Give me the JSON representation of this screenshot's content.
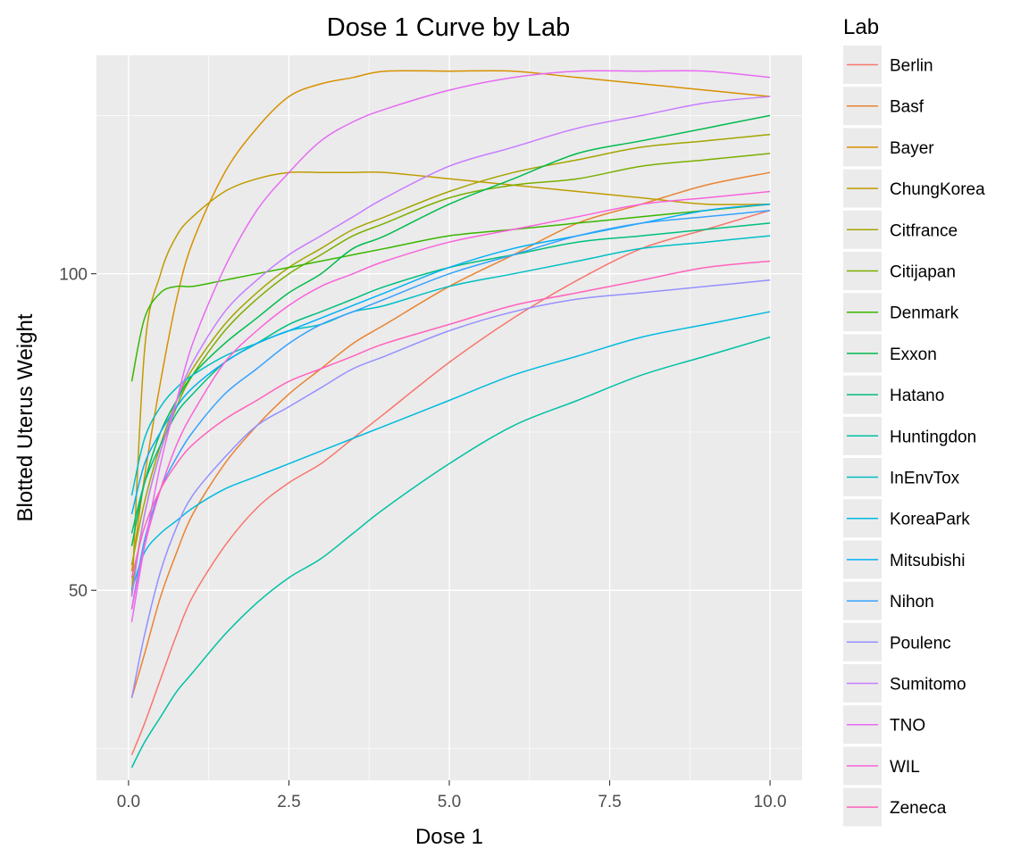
{
  "chart_data": {
    "type": "line",
    "title": "Dose 1 Curve by Lab",
    "xlabel": "Dose 1",
    "ylabel": "Blotted Uterus Weight",
    "xlim": [
      -0.5,
      10.5
    ],
    "ylim": [
      20,
      134.5
    ],
    "x_ticks": [
      0.0,
      2.5,
      5.0,
      7.5,
      10.0
    ],
    "x_tick_labels": [
      "0.0",
      "2.5",
      "5.0",
      "7.5",
      "10.0"
    ],
    "y_ticks": [
      50,
      100
    ],
    "y_tick_labels": [
      "50",
      "100"
    ],
    "grid": true,
    "panel_background": "#ebebeb",
    "legend": {
      "title": "Lab",
      "position": "right"
    },
    "x": [
      0.05,
      0.25,
      0.5,
      0.75,
      1.0,
      1.5,
      2.0,
      2.5,
      3.0,
      3.5,
      4.0,
      5.0,
      6.0,
      7.0,
      8.0,
      9.0,
      10.0
    ],
    "series": [
      {
        "name": "Berlin",
        "color": "#F8766D",
        "values": [
          24,
          29,
          36,
          43,
          49,
          57,
          63,
          67,
          70,
          74,
          78,
          86,
          93,
          99,
          104,
          107,
          110
        ]
      },
      {
        "name": "Basf",
        "color": "#EA8331",
        "values": [
          33,
          40,
          49,
          56,
          62,
          70,
          76,
          81,
          85,
          89,
          92,
          98,
          103,
          108,
          111,
          114,
          116
        ]
      },
      {
        "name": "Bayer",
        "color": "#D89000",
        "values": [
          53,
          68,
          83,
          96,
          105,
          116,
          123,
          128,
          130,
          131,
          132,
          132,
          132,
          131,
          130,
          129,
          128
        ]
      },
      {
        "name": "ChungKorea",
        "color": "#C09B00",
        "values": [
          49,
          88,
          100,
          106,
          109,
          113,
          115,
          116,
          116,
          116,
          116,
          115,
          114,
          113,
          112,
          111,
          111
        ]
      },
      {
        "name": "Citfrance",
        "color": "#A3A500",
        "values": [
          54,
          64,
          73,
          80,
          85,
          92,
          97,
          101,
          104,
          107,
          109,
          113,
          116,
          118,
          120,
          121,
          122
        ]
      },
      {
        "name": "Citijapan",
        "color": "#7CAE00",
        "values": [
          50,
          62,
          72,
          79,
          84,
          91,
          96,
          100,
          103,
          106,
          108,
          112,
          114,
          115,
          117,
          118,
          119
        ]
      },
      {
        "name": "Denmark",
        "color": "#39B600",
        "values": [
          83,
          93,
          97,
          98,
          98,
          99,
          100,
          101,
          102,
          103,
          104,
          106,
          107,
          108,
          109,
          110,
          111
        ]
      },
      {
        "name": "Exxon",
        "color": "#00BB4E",
        "values": [
          57,
          67,
          75,
          80,
          84,
          89,
          93,
          97,
          100,
          104,
          106,
          111,
          115,
          119,
          121,
          123,
          125
        ]
      },
      {
        "name": "Hatano",
        "color": "#00BF7D",
        "values": [
          59,
          67,
          73,
          78,
          81,
          86,
          89,
          92,
          94,
          96,
          98,
          101,
          103,
          105,
          106,
          107,
          108
        ]
      },
      {
        "name": "Huntingdon",
        "color": "#00C1A3",
        "values": [
          22,
          26,
          30,
          34,
          37,
          43,
          48,
          52,
          55,
          59,
          63,
          70,
          76,
          80,
          84,
          87,
          90
        ]
      },
      {
        "name": "InEnvTox",
        "color": "#00BFC4",
        "values": [
          65,
          74,
          79,
          82,
          84,
          87,
          89,
          91,
          92,
          94,
          95,
          98,
          100,
          102,
          104,
          105,
          106
        ]
      },
      {
        "name": "KoreaPark",
        "color": "#00BAE0",
        "values": [
          50,
          56,
          59,
          61,
          63,
          66,
          68,
          70,
          72,
          74,
          76,
          80,
          84,
          87,
          90,
          92,
          94
        ]
      },
      {
        "name": "Mitsubishi",
        "color": "#00B0F6",
        "values": [
          62,
          70,
          75,
          79,
          82,
          86,
          89,
          91,
          93,
          95,
          97,
          101,
          104,
          106,
          108,
          110,
          111
        ]
      },
      {
        "name": "Nihon",
        "color": "#35A2FF",
        "values": [
          47,
          58,
          66,
          71,
          75,
          81,
          85,
          89,
          92,
          94,
          96,
          100,
          103,
          106,
          108,
          109,
          110
        ]
      },
      {
        "name": "Poulenc",
        "color": "#9590FF",
        "values": [
          33,
          43,
          53,
          60,
          65,
          71,
          76,
          79,
          82,
          85,
          87,
          91,
          94,
          96,
          97,
          98,
          99
        ]
      },
      {
        "name": "Sumitomo",
        "color": "#C77CFF",
        "values": [
          49,
          62,
          72,
          80,
          86,
          94,
          99,
          103,
          106,
          109,
          112,
          117,
          120,
          123,
          125,
          127,
          128
        ]
      },
      {
        "name": "TNO",
        "color": "#E76BF3",
        "values": [
          45,
          57,
          70,
          80,
          89,
          101,
          110,
          116,
          121,
          124,
          126,
          129,
          131,
          132,
          132,
          132,
          131
        ]
      },
      {
        "name": "WIL",
        "color": "#FA62DB",
        "values": [
          47,
          57,
          66,
          73,
          78,
          86,
          91,
          95,
          98,
          100,
          102,
          105,
          107,
          109,
          111,
          112,
          113
        ]
      },
      {
        "name": "Zeneca",
        "color": "#FF62BC",
        "values": [
          52,
          60,
          66,
          70,
          73,
          77,
          80,
          83,
          85,
          87,
          89,
          92,
          95,
          97,
          99,
          101,
          102
        ]
      }
    ]
  }
}
